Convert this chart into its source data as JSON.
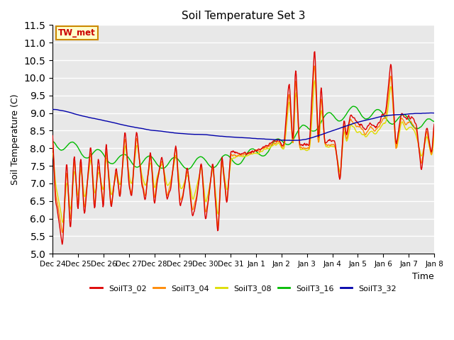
{
  "title": "Soil Temperature Set 3",
  "xlabel": "Time",
  "ylabel": "Soil Temperature (C)",
  "ylim": [
    5.0,
    11.5
  ],
  "yticks": [
    5.0,
    5.5,
    6.0,
    6.5,
    7.0,
    7.5,
    8.0,
    8.5,
    9.0,
    9.5,
    10.0,
    10.5,
    11.0,
    11.5
  ],
  "bg_color": "#e8e8e8",
  "grid_color": "#ffffff",
  "tw_met_label": "TW_met",
  "tw_met_color": "#cc0000",
  "tw_met_bg": "#ffffcc",
  "tw_met_border": "#cc8800",
  "series_colors": {
    "SoilT3_02": "#dd0000",
    "SoilT3_04": "#ff8800",
    "SoilT3_08": "#dddd00",
    "SoilT3_16": "#00bb00",
    "SoilT3_32": "#0000aa"
  },
  "xtick_labels": [
    "Dec 24",
    "Dec 25",
    "Dec 26",
    "Dec 27",
    "Dec 28",
    "Dec 29",
    "Dec 30",
    "Dec 31",
    "Jan 1",
    "Jan 2",
    "Jan 3",
    "Jan 4",
    "Jan 5",
    "Jan 6",
    "Jan 7",
    "Jan 8"
  ]
}
